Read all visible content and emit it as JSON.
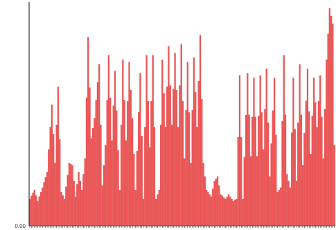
{
  "chart_data": {
    "type": "bar",
    "title": "",
    "xlabel": "",
    "ylabel": "",
    "y_tick_labels": [
      {
        "value": 0,
        "label": "0.00"
      }
    ],
    "ylim": [
      0,
      1.0
    ],
    "grid": false,
    "legend": "none",
    "bar_color": "#ee5555",
    "bar_edge_color": "#d94646",
    "axis_color": "#333333",
    "peaks": [
      {
        "x": 0,
        "y": 0.12
      },
      {
        "x": 3,
        "y": 0.16
      },
      {
        "x": 5,
        "y": 0.11
      },
      {
        "x": 8,
        "y": 0.17
      },
      {
        "x": 11,
        "y": 0.24
      },
      {
        "x": 14,
        "y": 0.54
      },
      {
        "x": 16,
        "y": 0.28
      },
      {
        "x": 18,
        "y": 0.62
      },
      {
        "x": 20,
        "y": 0.15
      },
      {
        "x": 22,
        "y": 0.12
      },
      {
        "x": 25,
        "y": 0.28
      },
      {
        "x": 27,
        "y": 0.27
      },
      {
        "x": 29,
        "y": 0.13
      },
      {
        "x": 31,
        "y": 0.24
      },
      {
        "x": 33,
        "y": 0.16
      },
      {
        "x": 35,
        "y": 0.3
      },
      {
        "x": 37,
        "y": 0.84
      },
      {
        "x": 39,
        "y": 0.39
      },
      {
        "x": 41,
        "y": 0.48
      },
      {
        "x": 44,
        "y": 0.72
      },
      {
        "x": 46,
        "y": 0.18
      },
      {
        "x": 48,
        "y": 0.36
      },
      {
        "x": 50,
        "y": 0.76
      },
      {
        "x": 52,
        "y": 0.38
      },
      {
        "x": 54,
        "y": 0.69
      },
      {
        "x": 57,
        "y": 0.16
      },
      {
        "x": 59,
        "y": 0.74
      },
      {
        "x": 61,
        "y": 0.38
      },
      {
        "x": 63,
        "y": 0.73
      },
      {
        "x": 65,
        "y": 0.48
      },
      {
        "x": 67,
        "y": 0.16
      },
      {
        "x": 70,
        "y": 0.68
      },
      {
        "x": 72,
        "y": 0.12
      },
      {
        "x": 74,
        "y": 0.76
      },
      {
        "x": 76,
        "y": 0.35
      },
      {
        "x": 78,
        "y": 0.76
      },
      {
        "x": 80,
        "y": 0.12
      },
      {
        "x": 82,
        "y": 0.16
      },
      {
        "x": 84,
        "y": 0.74
      },
      {
        "x": 86,
        "y": 0.44
      },
      {
        "x": 88,
        "y": 0.8
      },
      {
        "x": 90,
        "y": 0.45
      },
      {
        "x": 92,
        "y": 0.77
      },
      {
        "x": 94,
        "y": 0.44
      },
      {
        "x": 96,
        "y": 0.81
      },
      {
        "x": 98,
        "y": 0.3
      },
      {
        "x": 100,
        "y": 0.73
      },
      {
        "x": 102,
        "y": 0.28
      },
      {
        "x": 104,
        "y": 0.75
      },
      {
        "x": 106,
        "y": 0.44
      },
      {
        "x": 108,
        "y": 0.85
      },
      {
        "x": 110,
        "y": 0.28
      },
      {
        "x": 112,
        "y": 0.16
      },
      {
        "x": 115,
        "y": 0.13
      },
      {
        "x": 117,
        "y": 0.2
      },
      {
        "x": 119,
        "y": 0.22
      },
      {
        "x": 121,
        "y": 0.14
      },
      {
        "x": 124,
        "y": 0.12
      },
      {
        "x": 126,
        "y": 0.14
      },
      {
        "x": 129,
        "y": 0.11
      },
      {
        "x": 131,
        "y": 0.12
      },
      {
        "x": 133,
        "y": 0.67
      },
      {
        "x": 135,
        "y": 0.12
      },
      {
        "x": 138,
        "y": 0.68
      },
      {
        "x": 140,
        "y": 0.31
      },
      {
        "x": 142,
        "y": 0.66
      },
      {
        "x": 144,
        "y": 0.31
      },
      {
        "x": 146,
        "y": 0.67
      },
      {
        "x": 148,
        "y": 0.34
      },
      {
        "x": 150,
        "y": 0.7
      },
      {
        "x": 152,
        "y": 0.22
      },
      {
        "x": 155,
        "y": 0.66
      },
      {
        "x": 157,
        "y": 0.15
      },
      {
        "x": 159,
        "y": 0.17
      },
      {
        "x": 161,
        "y": 0.76
      },
      {
        "x": 163,
        "y": 0.23
      },
      {
        "x": 165,
        "y": 0.17
      },
      {
        "x": 167,
        "y": 0.66
      },
      {
        "x": 169,
        "y": 0.2
      },
      {
        "x": 171,
        "y": 0.72
      },
      {
        "x": 173,
        "y": 0.27
      },
      {
        "x": 176,
        "y": 0.7
      },
      {
        "x": 178,
        "y": 0.32
      },
      {
        "x": 180,
        "y": 0.66
      },
      {
        "x": 182,
        "y": 0.44
      },
      {
        "x": 184,
        "y": 0.67
      },
      {
        "x": 186,
        "y": 0.3
      },
      {
        "x": 188,
        "y": 0.74
      },
      {
        "x": 190,
        "y": 0.97
      },
      {
        "x": 192,
        "y": 0.9
      },
      {
        "x": 193,
        "y": 0.36
      }
    ]
  }
}
